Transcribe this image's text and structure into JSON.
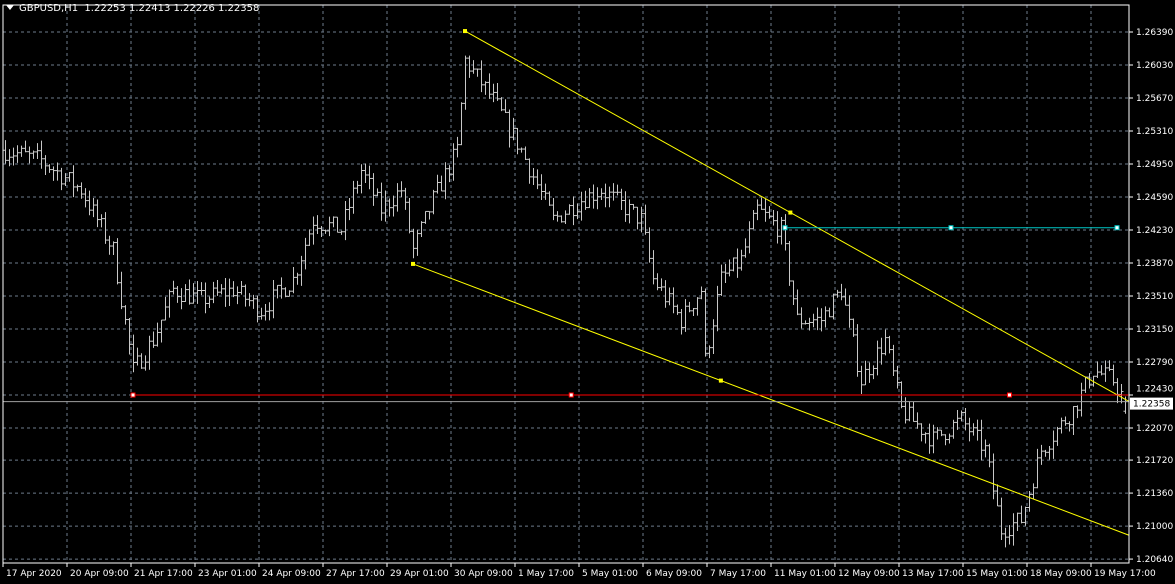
{
  "header": {
    "symbol": "GBPUSD",
    "timeframe": "H1",
    "title": "GBPUSD,H1  1.22253 1.22413 1.22226 1.22358"
  },
  "colors": {
    "background": "#000000",
    "bars": "#c8c8c8",
    "grid": "#6e7b8b",
    "channel": "#ffff00",
    "support_line": "#ff0000",
    "resistance_line": "#00c8c8",
    "bid_line": "#a0a0a0"
  },
  "chart_data": {
    "type": "ohlc",
    "grid": true,
    "last_bar": {
      "open": 1.22253,
      "high": 1.22413,
      "low": 1.22226,
      "close": 1.22358
    },
    "current_price": "1.22358",
    "ylim": [
      1.2055,
      1.268
    ],
    "yticks": [
      "1.26390",
      "1.26030",
      "1.25670",
      "1.25310",
      "1.24950",
      "1.24590",
      "1.24230",
      "1.23870",
      "1.23510",
      "1.23150",
      "1.22790",
      "1.22430",
      "1.22070",
      "1.21720",
      "1.21360",
      "1.21000",
      "1.20640"
    ],
    "xticks": [
      "17 Apr 2020",
      "20 Apr 09:00",
      "21 Apr 17:00",
      "23 Apr 01:00",
      "24 Apr 09:00",
      "27 Apr 17:00",
      "29 Apr 01:00",
      "30 Apr 09:00",
      "1 May 17:00",
      "5 May 01:00",
      "6 May 09:00",
      "7 May 17:00",
      "11 May 01:00",
      "12 May 09:00",
      "13 May 17:00",
      "15 May 01:00",
      "18 May 09:00",
      "19 May 17:00"
    ],
    "bars_per_tick": 16,
    "price_path": [
      [
        0,
        1.251
      ],
      [
        9,
        1.2499
      ],
      [
        19,
        1.2467
      ],
      [
        27,
        1.2401
      ],
      [
        32,
        1.227
      ],
      [
        37,
        1.2303
      ],
      [
        42,
        1.2358
      ],
      [
        49,
        1.2347
      ],
      [
        57,
        1.2358
      ],
      [
        64,
        1.2336
      ],
      [
        72,
        1.2369
      ],
      [
        77,
        1.2434
      ],
      [
        84,
        1.2423
      ],
      [
        89,
        1.2488
      ],
      [
        94,
        1.2445
      ],
      [
        99,
        1.2467
      ],
      [
        102,
        1.2401
      ],
      [
        107,
        1.2456
      ],
      [
        113,
        1.251
      ],
      [
        115,
        1.2608
      ],
      [
        122,
        1.2565
      ],
      [
        129,
        1.251
      ],
      [
        137,
        1.2434
      ],
      [
        144,
        1.2456
      ],
      [
        149,
        1.2467
      ],
      [
        159,
        1.2434
      ],
      [
        162,
        1.2369
      ],
      [
        169,
        1.2325
      ],
      [
        174,
        1.2358
      ],
      [
        175,
        1.2281
      ],
      [
        179,
        1.2369
      ],
      [
        184,
        1.239
      ],
      [
        188,
        1.2445
      ],
      [
        194,
        1.2423
      ],
      [
        198,
        1.2325
      ],
      [
        204,
        1.2325
      ],
      [
        209,
        1.2358
      ],
      [
        214,
        1.2259
      ],
      [
        220,
        1.2303
      ],
      [
        224,
        1.2227
      ],
      [
        232,
        1.2194
      ],
      [
        239,
        1.2216
      ],
      [
        245,
        1.2183
      ],
      [
        249,
        1.2096
      ],
      [
        254,
        1.2107
      ],
      [
        259,
        1.2183
      ],
      [
        267,
        1.2227
      ],
      [
        272,
        1.227
      ],
      [
        277,
        1.2259
      ],
      [
        280,
        1.2236
      ]
    ],
    "objects": {
      "channel_upper": [
        [
          115,
          1.264
        ],
        [
          281,
          1.2236
        ]
      ],
      "channel_lower": [
        [
          102,
          1.2386
        ],
        [
          281,
          1.209
        ]
      ],
      "support": {
        "price": 1.2243,
        "from_bar": 32
      },
      "resistance": {
        "price": 1.24255,
        "from_bar": 195,
        "to_bar": 278
      }
    }
  }
}
